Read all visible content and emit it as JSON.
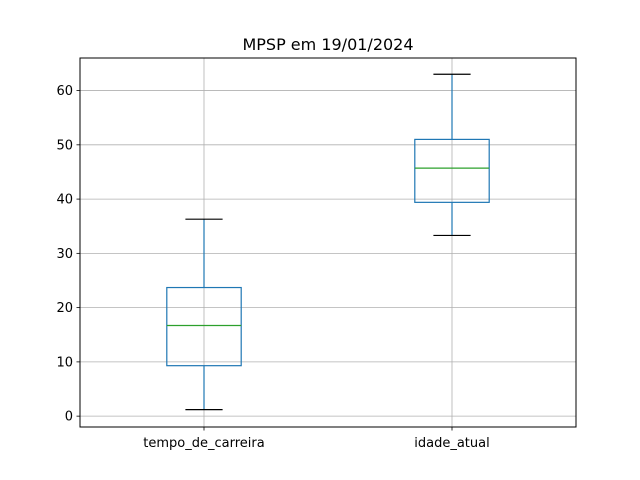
{
  "chart_data": {
    "type": "boxplot",
    "title": "MPSP em 19/01/2024",
    "xlabel": "",
    "ylabel": "",
    "ylim": [
      -2,
      66
    ],
    "yticks": [
      0,
      10,
      20,
      30,
      40,
      50,
      60
    ],
    "grid": true,
    "categories": [
      "tempo_de_carreira",
      "idade_atual"
    ],
    "boxes": [
      {
        "whisker_low": 1.2,
        "q1": 9.3,
        "median": 16.7,
        "q3": 23.7,
        "whisker_high": 36.3
      },
      {
        "whisker_low": 33.3,
        "q1": 39.4,
        "median": 45.7,
        "q3": 51.0,
        "whisker_high": 63.0
      }
    ],
    "colors": {
      "box": "#1f77b4",
      "median": "#2ca02c",
      "cap": "#000000",
      "grid": "#b0b0b0"
    }
  }
}
